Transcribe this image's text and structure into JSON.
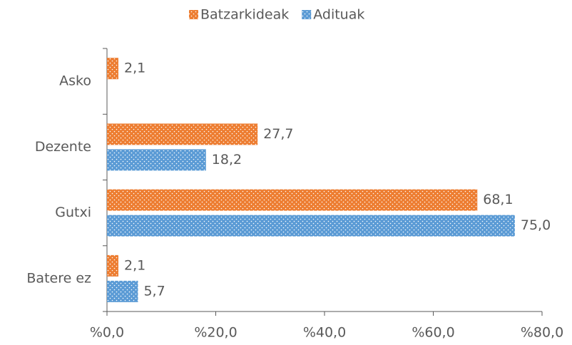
{
  "chart_data": {
    "type": "bar",
    "orientation": "horizontal",
    "categories": [
      "Asko",
      "Dezente",
      "Gutxi",
      "Batere ez"
    ],
    "series": [
      {
        "name": "Batzarkideak",
        "color": "#ed7d31",
        "values": [
          2.1,
          27.7,
          68.1,
          2.1
        ],
        "value_labels": [
          "2,1",
          "27,7",
          "68,1",
          "2,1"
        ]
      },
      {
        "name": "Adituak",
        "color": "#5b9bd5",
        "values": [
          null,
          18.2,
          75.0,
          5.7
        ],
        "value_labels": [
          null,
          "18,2",
          "75,0",
          "5,7"
        ]
      }
    ],
    "xlim": [
      0,
      80
    ],
    "xticks": [
      {
        "value": 0,
        "label": "%0,0"
      },
      {
        "value": 20,
        "label": "%20,0"
      },
      {
        "value": 40,
        "label": "%40,0"
      },
      {
        "value": 60,
        "label": "%60,0"
      },
      {
        "value": 80,
        "label": "%80,0"
      }
    ],
    "legend": "top",
    "grid": false
  }
}
